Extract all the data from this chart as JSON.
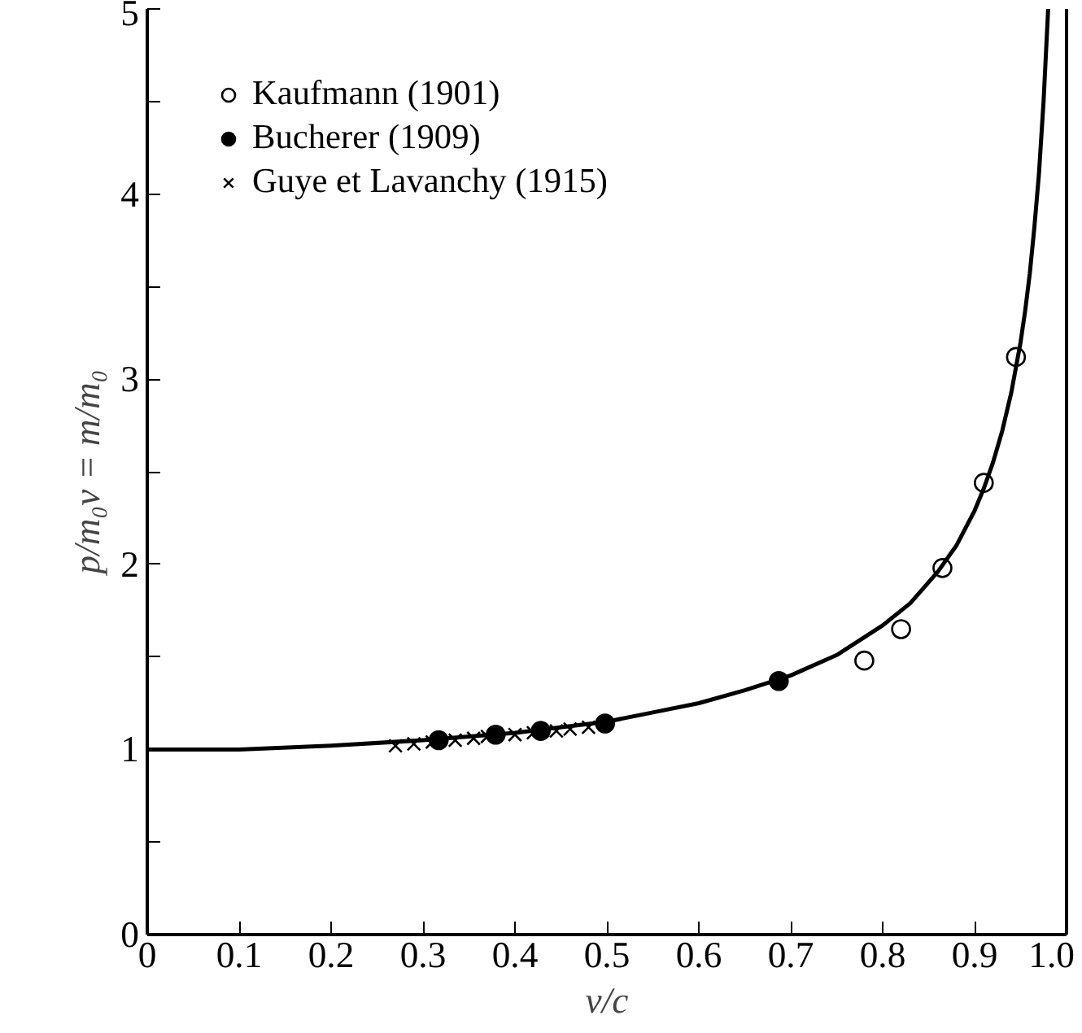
{
  "chart_data": {
    "type": "scatter",
    "xlabel": "v/c",
    "ylabel": "p/m₀v = m/m₀",
    "xlim": [
      0,
      1.0
    ],
    "ylim": [
      0,
      5
    ],
    "xticks": [
      0,
      0.1,
      0.2,
      0.3,
      0.4,
      0.5,
      0.6,
      0.7,
      0.8,
      0.9,
      {
        "value": 1.0,
        "label": "1.0"
      }
    ],
    "yticks": [
      0,
      {
        "value": 0.5,
        "label": null
      },
      1,
      {
        "value": 1.5,
        "label": null
      },
      2,
      {
        "value": 2.5,
        "label": null
      },
      3,
      {
        "value": 3.5,
        "label": null
      },
      4,
      {
        "value": 4.5,
        "label": null
      },
      5
    ],
    "grid": false,
    "legend": "top left",
    "series": [
      {
        "name": "Kaufmann (1901)",
        "marker": "circle",
        "color": "#ffffff",
        "x": [
          0.78,
          0.82,
          0.865,
          0.91,
          0.945
        ],
        "values": [
          1.48,
          1.65,
          1.98,
          2.44,
          3.12
        ]
      },
      {
        "name": "Bucherer (1909)",
        "marker": "circle",
        "color": "#000000",
        "x": [
          0.317,
          0.379,
          0.428,
          0.498,
          0.687
        ],
        "values": [
          1.05,
          1.08,
          1.1,
          1.14,
          1.37
        ]
      },
      {
        "name": "Guye et Lavanchy (1915)",
        "marker": "cross",
        "color": "#000000",
        "x": [
          0.27,
          0.29,
          0.31,
          0.335,
          0.355,
          0.37,
          0.4,
          0.42,
          0.445,
          0.46,
          0.48
        ],
        "values": [
          1.02,
          1.03,
          1.04,
          1.05,
          1.06,
          1.07,
          1.08,
          1.09,
          1.1,
          1.11,
          1.12
        ]
      },
      {
        "type": "line",
        "marker": "none",
        "line_style": "solid",
        "color": "#000000",
        "x": [
          0,
          0.1,
          0.2,
          0.3,
          0.4,
          0.5,
          0.55,
          0.6,
          0.65,
          0.7,
          0.75,
          0.8,
          0.83,
          0.86,
          0.88,
          0.9,
          0.91,
          0.92,
          0.93,
          0.94,
          0.95,
          0.955,
          0.96,
          0.965,
          0.97,
          0.975,
          0.98
        ],
        "values": [
          1,
          1.0,
          1.02,
          1.05,
          1.09,
          1.15,
          1.2,
          1.25,
          1.32,
          1.4,
          1.51,
          1.67,
          1.79,
          1.96,
          2.1,
          2.29,
          2.41,
          2.55,
          2.72,
          2.93,
          3.2,
          3.37,
          3.57,
          3.82,
          4.11,
          4.5,
          5.0
        ]
      }
    ]
  }
}
